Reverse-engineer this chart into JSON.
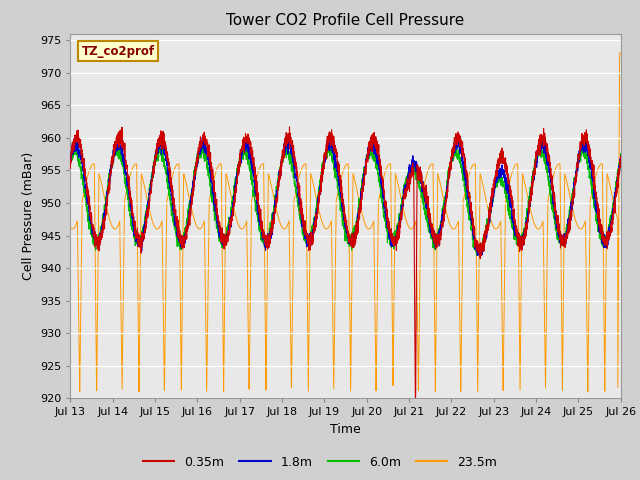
{
  "title": "Tower CO2 Profile Cell Pressure",
  "xlabel": "Time",
  "ylabel": "Cell Pressure (mBar)",
  "ylim": [
    920,
    976
  ],
  "yticks": [
    920,
    925,
    930,
    935,
    940,
    945,
    950,
    955,
    960,
    965,
    970,
    975
  ],
  "series": [
    "0.35m",
    "1.8m",
    "6.0m",
    "23.5m"
  ],
  "colors": [
    "#cc0000",
    "#0000cc",
    "#00bb00",
    "#ff9900"
  ],
  "legend_label": "TZ_co2prof",
  "legend_box_color": "#ffffcc",
  "legend_box_edge": "#bb8800",
  "plot_bg_color": "#e8e8e8",
  "fig_bg_color": "#d0d0d0",
  "x_start": 13,
  "x_end": 26,
  "xtick_labels": [
    "Jul 13",
    "Jul 14",
    "Jul 15",
    "Jul 16",
    "Jul 17",
    "Jul 18",
    "Jul 19",
    "Jul 20",
    "Jul 21",
    "Jul 22",
    "Jul 23",
    "Jul 24",
    "Jul 25",
    "Jul 26"
  ],
  "xtick_positions": [
    13,
    14,
    15,
    16,
    17,
    18,
    19,
    20,
    21,
    22,
    23,
    24,
    25,
    26
  ]
}
